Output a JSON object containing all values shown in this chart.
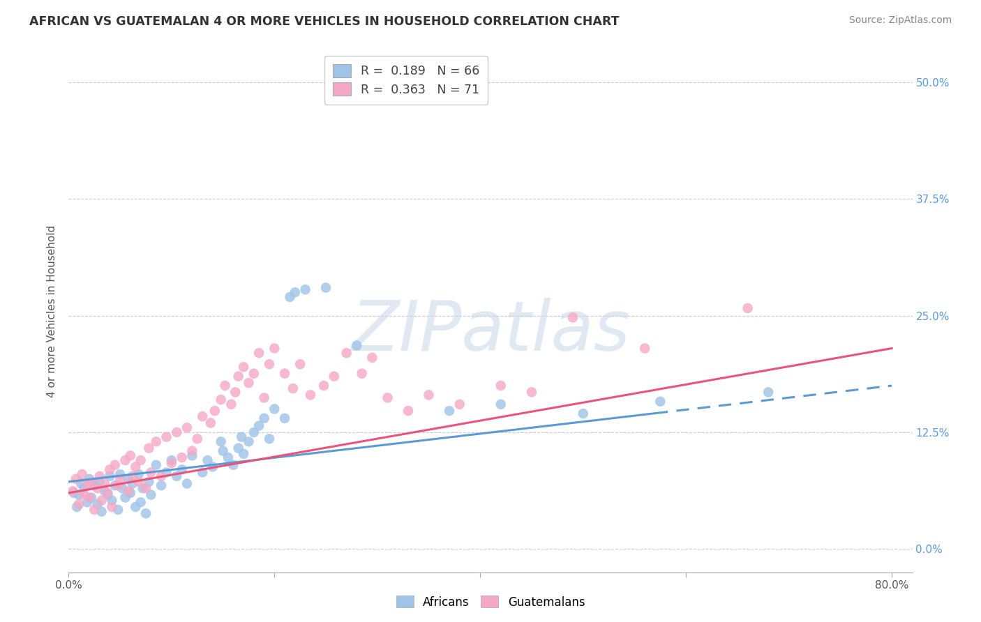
{
  "title": "AFRICAN VS GUATEMALAN 4 OR MORE VEHICLES IN HOUSEHOLD CORRELATION CHART",
  "source": "Source: ZipAtlas.com",
  "ylabel": "4 or more Vehicles in Household",
  "xlim": [
    0.0,
    0.82
  ],
  "ylim": [
    -0.025,
    0.535
  ],
  "yticks": [
    0.0,
    0.125,
    0.25,
    0.375,
    0.5
  ],
  "ytick_labels": [
    "0.0%",
    "12.5%",
    "25.0%",
    "37.5%",
    "50.0%"
  ],
  "xticks": [
    0.0,
    0.2,
    0.4,
    0.6,
    0.8
  ],
  "xtick_labels_left": [
    "0.0%",
    "",
    "",
    "",
    ""
  ],
  "xtick_labels_right": [
    "",
    "",
    "",
    "",
    "80.0%"
  ],
  "african_R": 0.189,
  "african_N": 66,
  "guatemalan_R": 0.363,
  "guatemalan_N": 71,
  "african_color": "#9ec4e8",
  "guatemalan_color": "#f5a8c5",
  "african_line_color": "#5b9bd5",
  "guatemalan_line_color": "#e8547a",
  "african_line_dash_start": 0.57,
  "african_line_end": 0.8,
  "guatemalan_line_end": 0.8,
  "watermark_text": "ZIPatlas",
  "watermark_color": "#c8d8e8",
  "african_scatter_x": [
    0.005,
    0.008,
    0.01,
    0.012,
    0.015,
    0.018,
    0.02,
    0.022,
    0.025,
    0.028,
    0.03,
    0.032,
    0.035,
    0.038,
    0.04,
    0.042,
    0.045,
    0.048,
    0.05,
    0.052,
    0.055,
    0.058,
    0.06,
    0.062,
    0.065,
    0.068,
    0.07,
    0.072,
    0.075,
    0.078,
    0.08,
    0.085,
    0.09,
    0.095,
    0.1,
    0.105,
    0.11,
    0.115,
    0.12,
    0.13,
    0.135,
    0.14,
    0.148,
    0.15,
    0.155,
    0.16,
    0.165,
    0.168,
    0.17,
    0.175,
    0.18,
    0.185,
    0.19,
    0.195,
    0.2,
    0.21,
    0.215,
    0.22,
    0.23,
    0.25,
    0.28,
    0.37,
    0.42,
    0.5,
    0.575,
    0.68
  ],
  "african_scatter_y": [
    0.06,
    0.045,
    0.058,
    0.07,
    0.065,
    0.05,
    0.075,
    0.055,
    0.068,
    0.048,
    0.072,
    0.04,
    0.062,
    0.058,
    0.078,
    0.052,
    0.068,
    0.042,
    0.08,
    0.065,
    0.055,
    0.075,
    0.06,
    0.07,
    0.045,
    0.08,
    0.05,
    0.065,
    0.038,
    0.072,
    0.058,
    0.09,
    0.068,
    0.082,
    0.095,
    0.078,
    0.085,
    0.07,
    0.1,
    0.082,
    0.095,
    0.088,
    0.115,
    0.105,
    0.098,
    0.09,
    0.108,
    0.12,
    0.102,
    0.115,
    0.125,
    0.132,
    0.14,
    0.118,
    0.15,
    0.14,
    0.27,
    0.275,
    0.278,
    0.28,
    0.218,
    0.148,
    0.155,
    0.145,
    0.158,
    0.168
  ],
  "guatemalan_scatter_x": [
    0.004,
    0.007,
    0.01,
    0.013,
    0.015,
    0.018,
    0.02,
    0.022,
    0.025,
    0.028,
    0.03,
    0.032,
    0.035,
    0.038,
    0.04,
    0.042,
    0.045,
    0.048,
    0.05,
    0.055,
    0.058,
    0.06,
    0.062,
    0.065,
    0.068,
    0.07,
    0.075,
    0.078,
    0.08,
    0.085,
    0.09,
    0.095,
    0.1,
    0.105,
    0.11,
    0.115,
    0.12,
    0.125,
    0.13,
    0.138,
    0.142,
    0.148,
    0.152,
    0.158,
    0.162,
    0.165,
    0.17,
    0.175,
    0.18,
    0.185,
    0.19,
    0.195,
    0.2,
    0.21,
    0.218,
    0.225,
    0.235,
    0.248,
    0.258,
    0.27,
    0.285,
    0.295,
    0.31,
    0.33,
    0.35,
    0.38,
    0.42,
    0.45,
    0.49,
    0.56,
    0.66
  ],
  "guatemalan_scatter_y": [
    0.062,
    0.075,
    0.048,
    0.08,
    0.058,
    0.068,
    0.055,
    0.072,
    0.042,
    0.065,
    0.078,
    0.052,
    0.07,
    0.06,
    0.085,
    0.045,
    0.09,
    0.068,
    0.075,
    0.095,
    0.062,
    0.1,
    0.078,
    0.088,
    0.072,
    0.095,
    0.065,
    0.108,
    0.082,
    0.115,
    0.078,
    0.12,
    0.092,
    0.125,
    0.098,
    0.13,
    0.105,
    0.118,
    0.142,
    0.135,
    0.148,
    0.16,
    0.175,
    0.155,
    0.168,
    0.185,
    0.195,
    0.178,
    0.188,
    0.21,
    0.162,
    0.198,
    0.215,
    0.188,
    0.172,
    0.198,
    0.165,
    0.175,
    0.185,
    0.21,
    0.188,
    0.205,
    0.162,
    0.148,
    0.165,
    0.155,
    0.175,
    0.168,
    0.248,
    0.215,
    0.258
  ]
}
